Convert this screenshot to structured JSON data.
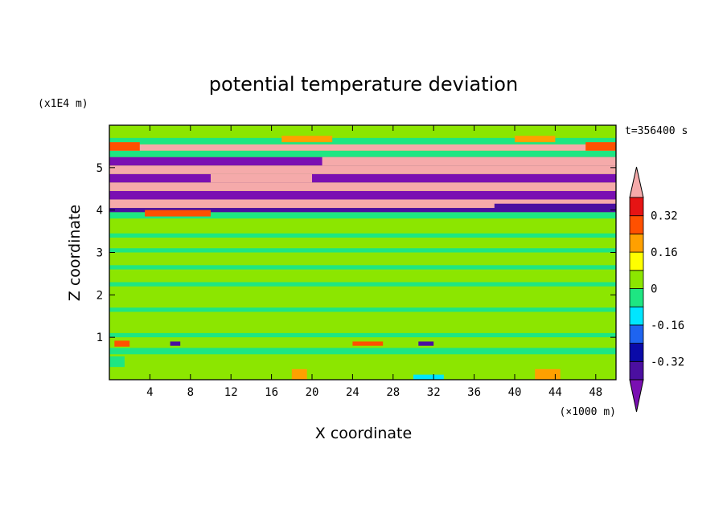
{
  "chart_data": {
    "type": "heatmap",
    "title": "potential temperature deviation",
    "xlabel": "X coordinate",
    "ylabel": "Z coordinate",
    "x_unit": "(×1000 m)",
    "y_unit": "(x1E4 m)",
    "time_label": "t=356400 s",
    "xlim": [
      0,
      50
    ],
    "ylim": [
      0,
      6
    ],
    "x_ticks": [
      4,
      8,
      12,
      16,
      20,
      24,
      28,
      32,
      36,
      40,
      44,
      48
    ],
    "y_ticks": [
      1,
      2,
      3,
      4,
      5
    ],
    "colorbar": {
      "levels": [
        -0.4,
        -0.32,
        -0.24,
        -0.16,
        -0.08,
        0,
        0.08,
        0.16,
        0.24,
        0.32,
        0.4
      ],
      "colors": [
        "#7a0fb2",
        "#4b0fa0",
        "#0a0aa8",
        "#1e64f0",
        "#00e6ff",
        "#1ee682",
        "#8ce600",
        "#ffff00",
        "#ffa000",
        "#ff5000",
        "#e61414",
        "#f5aaaa"
      ],
      "tick_labels": [
        "0.32",
        "0.16",
        "0",
        "-0.16",
        "-0.32"
      ],
      "tick_values": [
        0.32,
        0.16,
        0,
        -0.16,
        -0.32
      ]
    },
    "background_value": 0.04,
    "bands": [
      {
        "z0": 0.0,
        "z1": 0.3,
        "value": 0.04
      },
      {
        "z0": 0.6,
        "z1": 0.75,
        "value": -0.04
      },
      {
        "z0": 1.0,
        "z1": 1.1,
        "value": -0.04
      },
      {
        "z0": 1.6,
        "z1": 1.7,
        "value": -0.04
      },
      {
        "z0": 2.2,
        "z1": 2.3,
        "value": -0.04
      },
      {
        "z0": 2.6,
        "z1": 2.7,
        "value": -0.04
      },
      {
        "z0": 3.0,
        "z1": 3.1,
        "value": -0.04
      },
      {
        "z0": 3.35,
        "z1": 3.45,
        "value": -0.04
      },
      {
        "z0": 3.8,
        "z1": 3.95,
        "value": -0.04
      },
      {
        "z0": 3.95,
        "z1": 4.05,
        "value": -0.36
      },
      {
        "z0": 4.05,
        "z1": 4.25,
        "value": 0.44
      },
      {
        "z0": 4.25,
        "z1": 4.45,
        "value": -0.44
      },
      {
        "z0": 4.45,
        "z1": 4.65,
        "value": 0.44
      },
      {
        "z0": 4.65,
        "z1": 4.85,
        "value": -0.44
      },
      {
        "z0": 4.85,
        "z1": 5.05,
        "value": 0.44
      },
      {
        "z0": 5.05,
        "z1": 5.25,
        "value": -0.44
      },
      {
        "z0": 5.25,
        "z1": 5.4,
        "value": -0.04
      },
      {
        "z0": 5.4,
        "z1": 5.55,
        "value": 0.44
      },
      {
        "z0": 5.55,
        "z1": 5.7,
        "value": -0.04
      }
    ],
    "patches": [
      {
        "x0": 0.0,
        "x1": 1.5,
        "z0": 0.3,
        "z1": 0.55,
        "value": -0.04
      },
      {
        "x0": 18.0,
        "x1": 19.5,
        "z0": 0.0,
        "z1": 0.25,
        "value": 0.2
      },
      {
        "x0": 30.0,
        "x1": 33.0,
        "z0": 0.0,
        "z1": 0.12,
        "value": -0.12
      },
      {
        "x0": 42.0,
        "x1": 44.5,
        "z0": 0.0,
        "z1": 0.25,
        "value": 0.2
      },
      {
        "x0": 0.5,
        "x1": 2.0,
        "z0": 0.78,
        "z1": 0.92,
        "value": 0.3
      },
      {
        "x0": 6.0,
        "x1": 7.0,
        "z0": 0.8,
        "z1": 0.9,
        "value": -0.34
      },
      {
        "x0": 24.0,
        "x1": 27.0,
        "z0": 0.8,
        "z1": 0.9,
        "value": 0.3
      },
      {
        "x0": 30.5,
        "x1": 32.0,
        "z0": 0.8,
        "z1": 0.9,
        "value": -0.34
      },
      {
        "x0": 3.5,
        "x1": 10.0,
        "z0": 3.85,
        "z1": 4.0,
        "value": 0.3
      },
      {
        "x0": 38.0,
        "x1": 50.0,
        "z0": 4.0,
        "z1": 4.15,
        "value": -0.36
      },
      {
        "x0": 0.0,
        "x1": 3.0,
        "z0": 5.4,
        "z1": 5.6,
        "value": 0.3
      },
      {
        "x0": 47.0,
        "x1": 50.0,
        "z0": 5.4,
        "z1": 5.6,
        "value": 0.3
      },
      {
        "x0": 21.0,
        "x1": 50.0,
        "z0": 5.05,
        "z1": 5.25,
        "value": 0.44
      },
      {
        "x0": 10.0,
        "x1": 20.0,
        "z0": 4.65,
        "z1": 4.85,
        "value": 0.44
      },
      {
        "x0": 17.0,
        "x1": 22.0,
        "z0": 5.6,
        "z1": 5.75,
        "value": 0.2
      },
      {
        "x0": 40.0,
        "x1": 44.0,
        "z0": 5.6,
        "z1": 5.75,
        "value": 0.2
      }
    ]
  }
}
